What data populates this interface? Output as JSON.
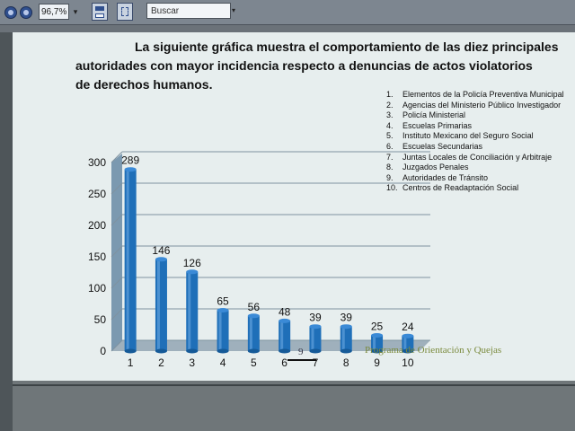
{
  "toolbar": {
    "zoom_value": "96,7%",
    "zoom_arrow": "▾",
    "search_placeholder": "Buscar",
    "search_arrow": "▾",
    "icons": [
      "back-icon",
      "forward-icon",
      "save-icon",
      "fit-page-icon"
    ]
  },
  "document": {
    "intro_line1": "La siguiente gráfica muestra el comportamiento de las diez principales",
    "intro_line2": "autoridades con mayor incidencia respecto a denuncias de actos violatorios",
    "intro_line3": "de derechos humanos.",
    "legend": [
      {
        "num": "1.",
        "text": "Elementos de la Policía Preventiva Municipal"
      },
      {
        "num": "2.",
        "text": "Agencias del Ministerio Público Investigador"
      },
      {
        "num": "3.",
        "text": "Policía Ministerial"
      },
      {
        "num": "4.",
        "text": "Escuelas Primarias"
      },
      {
        "num": "5.",
        "text": "Instituto Mexicano del Seguro Social"
      },
      {
        "num": "6.",
        "text": "Escuelas Secundarias"
      },
      {
        "num": "7.",
        "text": "Juntas Locales de Conciliación y Arbitraje"
      },
      {
        "num": "8.",
        "text": "Juzgados Penales"
      },
      {
        "num": "9.",
        "text": "Autoridades de Tránsito"
      },
      {
        "num": "10.",
        "text": "Centros de Readaptación Social"
      }
    ],
    "page_number": "9",
    "footer_text": "Programa de Orientación y Quejas"
  },
  "chart_data": {
    "type": "bar",
    "categories": [
      "1",
      "2",
      "3",
      "4",
      "5",
      "6",
      "7",
      "8",
      "9",
      "10"
    ],
    "values": [
      289,
      146,
      126,
      65,
      56,
      48,
      39,
      39,
      25,
      24
    ],
    "data_labels": [
      "289",
      "146",
      "126",
      "65",
      "56",
      "48",
      "39",
      "39",
      "25",
      "24"
    ],
    "yticks": [
      "0",
      "50",
      "100",
      "150",
      "200",
      "250",
      "300"
    ],
    "ylim": [
      0,
      300
    ],
    "grid": true,
    "bar_color": "#1f6fb8",
    "wall_color": "#6f8fa8"
  }
}
